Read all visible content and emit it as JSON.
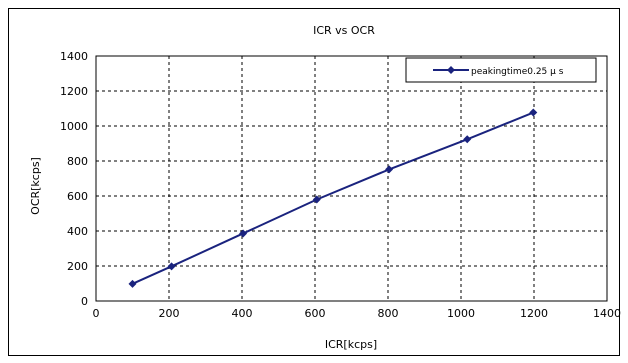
{
  "chart_data": {
    "type": "line",
    "title": "ICR vs OCR",
    "xlabel": "ICR[kcps]",
    "ylabel": "OCR[kcps]",
    "xlim": [
      0,
      1400
    ],
    "ylim": [
      0,
      1400
    ],
    "xticks": [
      0,
      200,
      400,
      600,
      800,
      1000,
      1200,
      1400
    ],
    "yticks": [
      0,
      200,
      400,
      600,
      800,
      1000,
      1200,
      1400
    ],
    "grid": true,
    "grid_style": "dashed",
    "legend_position": "top-right",
    "series": [
      {
        "name": "peakingtime0.25 μ s",
        "color": "#1a237e",
        "marker": "diamond",
        "points": [
          {
            "x": 100,
            "y": 98
          },
          {
            "x": 207,
            "y": 198
          },
          {
            "x": 403,
            "y": 386
          },
          {
            "x": 605,
            "y": 580
          },
          {
            "x": 803,
            "y": 752
          },
          {
            "x": 1017,
            "y": 924
          },
          {
            "x": 1198,
            "y": 1077
          }
        ]
      }
    ]
  }
}
